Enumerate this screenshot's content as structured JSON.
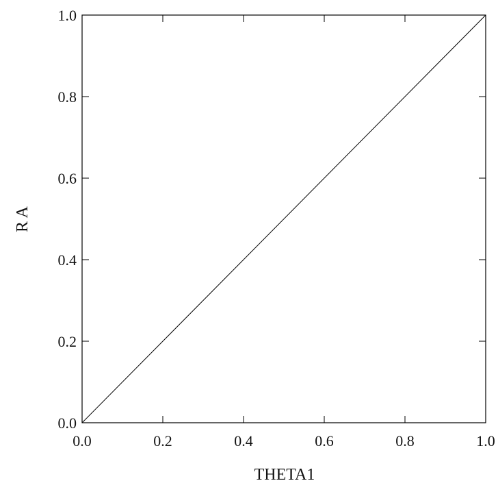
{
  "chart_data": {
    "type": "line",
    "xlabel": "THETA1",
    "ylabel": "R A",
    "xlim": [
      0.0,
      1.0
    ],
    "ylim": [
      0.0,
      1.0
    ],
    "x_ticks": [
      "0.0",
      "0.2",
      "0.4",
      "0.6",
      "0.8",
      "1.0"
    ],
    "y_ticks": [
      "0.0",
      "0.2",
      "0.4",
      "0.6",
      "0.8",
      "1.0"
    ],
    "grid": false,
    "legend": "none",
    "series": [
      {
        "x": [
          0.0,
          1.0
        ],
        "y": [
          0.0,
          1.0
        ],
        "color": "#000000"
      }
    ]
  }
}
